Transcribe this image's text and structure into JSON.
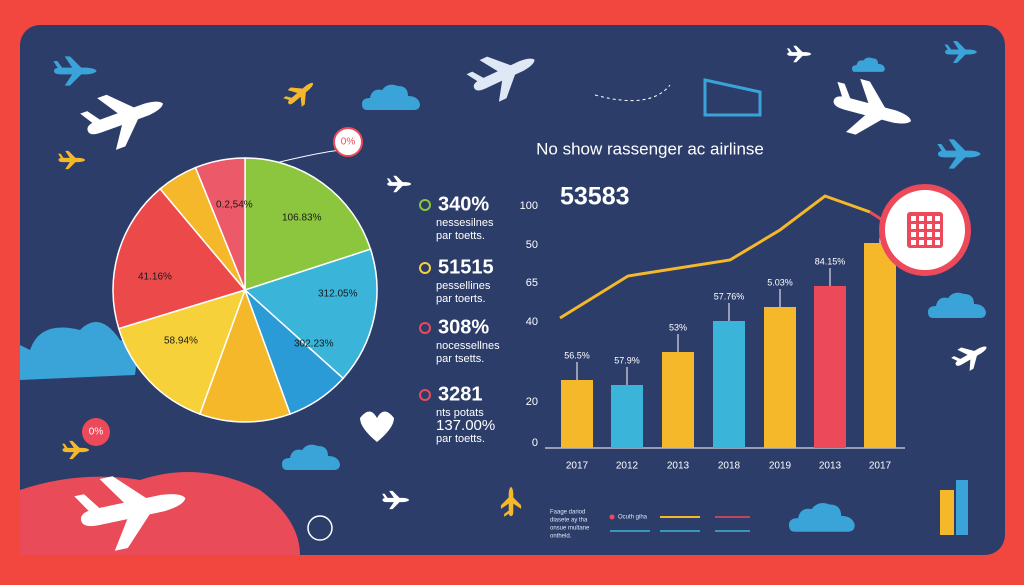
{
  "title": "No show rassenger ac airlinse",
  "pie": {
    "labels": [
      "0.2,54%",
      "106.83%",
      "312.05%",
      "302.23%",
      "58.94%",
      "41.16%"
    ],
    "badge": "0%"
  },
  "stats": [
    {
      "value": "340%",
      "lines": [
        "nessesilnes",
        "par toetts."
      ]
    },
    {
      "value": "51515",
      "lines": [
        "pessellines",
        "par toerts."
      ]
    },
    {
      "value": "308%",
      "lines": [
        "nocessellnes",
        "par tsetts."
      ]
    },
    {
      "value": "3281",
      "lines": [
        "nts potats",
        "137.00%",
        "par toetts."
      ]
    }
  ],
  "bar_chart": {
    "headline": "53583",
    "y_labels": [
      "100",
      "50",
      "65",
      "40",
      "20",
      "0"
    ],
    "x_labels": [
      "2017",
      "2012",
      "2013",
      "2018",
      "2019",
      "2013",
      "2017"
    ],
    "bar_labels": [
      "56.5%",
      "57.9%",
      "53%",
      "57.76%",
      "5.03%",
      "84.15%"
    ]
  },
  "legend": {
    "left_lines": [
      "Faage dariod",
      "diasete ay tha",
      "onsue multane",
      "ontheld."
    ],
    "right": "Ocuth giha"
  },
  "corner_badge": "0%"
}
